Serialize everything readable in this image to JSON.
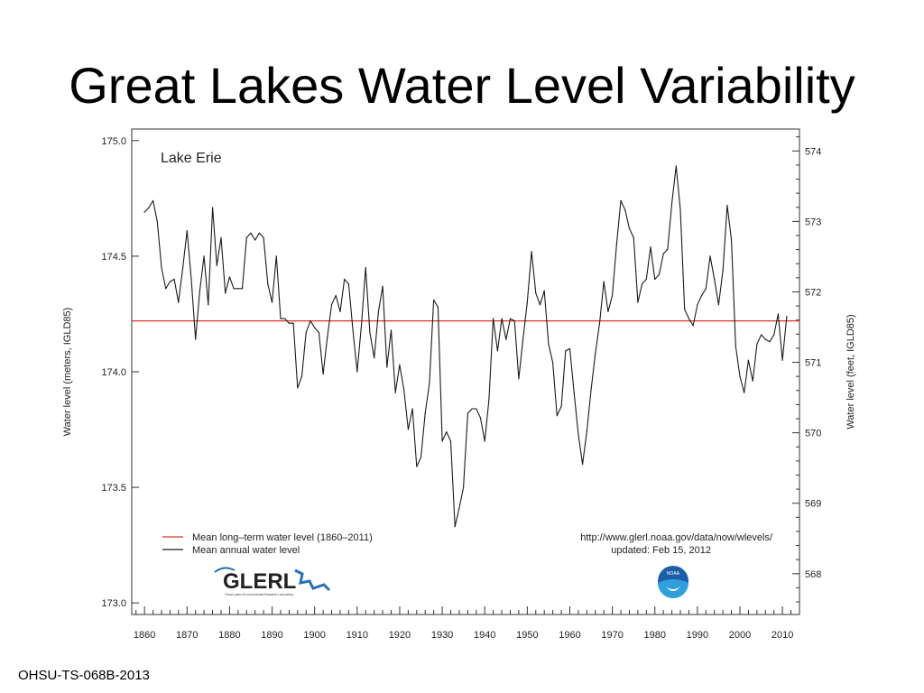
{
  "slide": {
    "title": "Great Lakes Water Level Variability",
    "footer": "OHSU-TS-068B-2013"
  },
  "logos": {
    "glerl_text": "GLERL",
    "glerl_subtext": "Great Lakes Environmental Research Laboratory",
    "noaa_text": "NOAA"
  },
  "colors": {
    "mean_line": "#e0312b",
    "series_line": "#1a1a1a",
    "frame": "#333333",
    "glerl_blue": "#2a6fb5",
    "noaa_blue": "#1a5fa8",
    "noaa_light": "#2fa0dc"
  },
  "chart_data": {
    "type": "line",
    "title": "Lake Erie",
    "ylabel": "Water level (meters, IGLD85)",
    "ylabel_right": "Water level (feet, IGLD85)",
    "xlim": [
      1857,
      2014
    ],
    "ylim": [
      172.95,
      175.05
    ],
    "y_ticks": [
      "175.0",
      "174.5",
      "174.0",
      "173.5",
      "173.0"
    ],
    "y_tick_values": [
      175.0,
      174.5,
      174.0,
      173.5,
      173.0
    ],
    "y_right_ticks": [
      "574",
      "573",
      "572",
      "571",
      "570",
      "569",
      "568"
    ],
    "x_ticks": [
      "1860",
      "1870",
      "1880",
      "1890",
      "1900",
      "1910",
      "1920",
      "1930",
      "1940",
      "1950",
      "1960",
      "1970",
      "1980",
      "1990",
      "2000",
      "2010"
    ],
    "mean_level": 174.22,
    "legend": [
      {
        "label": "Mean long–term water level (1860–2011)",
        "color": "#e0312b"
      },
      {
        "label": "Mean annual water level",
        "color": "#1a1a1a"
      }
    ],
    "source_url": "http://www.glerl.noaa.gov/data/now/wlevels/",
    "source_updated": "updated: Feb 15, 2012",
    "series": [
      {
        "name": "Mean annual water level",
        "x": [
          1860,
          1861,
          1862,
          1863,
          1864,
          1865,
          1866,
          1867,
          1868,
          1869,
          1870,
          1871,
          1872,
          1873,
          1874,
          1875,
          1876,
          1877,
          1878,
          1879,
          1880,
          1881,
          1882,
          1883,
          1884,
          1885,
          1886,
          1887,
          1888,
          1889,
          1890,
          1891,
          1892,
          1893,
          1894,
          1895,
          1896,
          1897,
          1898,
          1899,
          1900,
          1901,
          1902,
          1903,
          1904,
          1905,
          1906,
          1907,
          1908,
          1909,
          1910,
          1911,
          1912,
          1913,
          1914,
          1915,
          1916,
          1917,
          1918,
          1919,
          1920,
          1921,
          1922,
          1923,
          1924,
          1925,
          1926,
          1927,
          1928,
          1929,
          1930,
          1931,
          1932,
          1933,
          1934,
          1935,
          1936,
          1937,
          1938,
          1939,
          1940,
          1941,
          1942,
          1943,
          1944,
          1945,
          1946,
          1947,
          1948,
          1949,
          1950,
          1951,
          1952,
          1953,
          1954,
          1955,
          1956,
          1957,
          1958,
          1959,
          1960,
          1961,
          1962,
          1963,
          1964,
          1965,
          1966,
          1967,
          1968,
          1969,
          1970,
          1971,
          1972,
          1973,
          1974,
          1975,
          1976,
          1977,
          1978,
          1979,
          1980,
          1981,
          1982,
          1983,
          1984,
          1985,
          1986,
          1987,
          1988,
          1989,
          1990,
          1991,
          1992,
          1993,
          1994,
          1995,
          1996,
          1997,
          1998,
          1999,
          2000,
          2001,
          2002,
          2003,
          2004,
          2005,
          2006,
          2007,
          2008,
          2009,
          2010,
          2011
        ],
        "values": [
          174.69,
          174.71,
          174.74,
          174.65,
          174.45,
          174.36,
          174.39,
          174.4,
          174.3,
          174.45,
          174.61,
          174.4,
          174.14,
          174.35,
          174.5,
          174.29,
          174.71,
          174.46,
          174.58,
          174.34,
          174.41,
          174.36,
          174.36,
          174.36,
          174.58,
          174.6,
          174.57,
          174.6,
          174.58,
          174.38,
          174.3,
          174.5,
          174.23,
          174.23,
          174.21,
          174.21,
          173.93,
          173.98,
          174.17,
          174.22,
          174.19,
          174.17,
          173.99,
          174.15,
          174.29,
          174.33,
          174.26,
          174.4,
          174.38,
          174.18,
          174.0,
          174.2,
          174.45,
          174.17,
          174.06,
          174.26,
          174.37,
          174.02,
          174.18,
          173.91,
          174.03,
          173.92,
          173.75,
          173.84,
          173.59,
          173.63,
          173.82,
          173.95,
          174.31,
          174.28,
          173.7,
          173.74,
          173.7,
          173.33,
          173.41,
          173.5,
          173.82,
          173.84,
          173.84,
          173.8,
          173.7,
          173.88,
          174.23,
          174.09,
          174.23,
          174.14,
          174.23,
          174.22,
          173.97,
          174.14,
          174.3,
          174.52,
          174.34,
          174.29,
          174.35,
          174.12,
          174.04,
          173.81,
          173.85,
          174.09,
          174.1,
          173.91,
          173.73,
          173.6,
          173.74,
          173.92,
          174.08,
          174.21,
          174.39,
          174.26,
          174.33,
          174.55,
          174.74,
          174.7,
          174.62,
          174.58,
          174.3,
          174.38,
          174.4,
          174.54,
          174.4,
          174.42,
          174.51,
          174.53,
          174.73,
          174.89,
          174.7,
          174.27,
          174.23,
          174.2,
          174.29,
          174.33,
          174.36,
          174.5,
          174.4,
          174.29,
          174.44,
          174.72,
          174.57,
          174.11,
          173.98,
          173.91,
          174.05,
          173.96,
          174.12,
          174.16,
          174.14,
          174.13,
          174.16,
          174.25,
          174.05,
          174.24
        ]
      }
    ]
  }
}
